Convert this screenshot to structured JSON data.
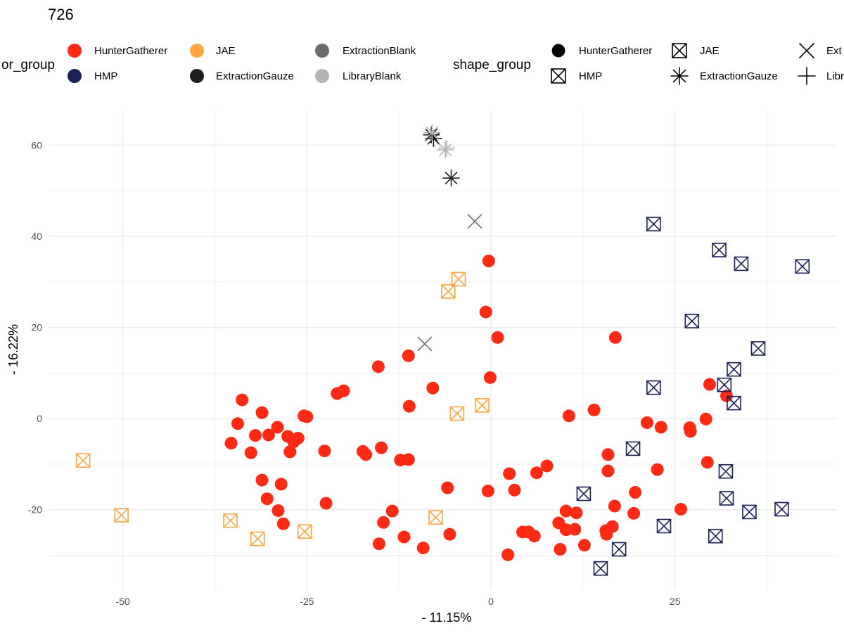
{
  "chart_data": {
    "type": "scatter",
    "title": "726",
    "xlabel": "-  11.15%",
    "ylabel": "-  16.22%",
    "xlim": [
      -60,
      47
    ],
    "ylim": [
      -37.5,
      67.5
    ],
    "x_ticks": [
      -50,
      -25,
      0,
      25
    ],
    "x_tick_labels": [
      "-50",
      "-25",
      "0",
      "25"
    ],
    "y_ticks": [
      -20,
      0,
      20,
      40,
      60
    ],
    "y_tick_labels": [
      "-20",
      "0",
      "20",
      "40",
      "60"
    ],
    "grid": true,
    "legend_position": "top",
    "colors": {
      "HunterGatherer": "#ff2a13",
      "HMP": "#1a2157",
      "JAE": "#ffa640",
      "ExtractionGauze": "#1e1e1e",
      "ExtractionBlank": "#6b6b6b",
      "LibraryBlank": "#b4b4b4"
    },
    "color_legend": {
      "title": "color_group",
      "title_visible_text": "or_group",
      "items": [
        {
          "label": "HunterGatherer",
          "color": "#ff2a13"
        },
        {
          "label": "JAE",
          "color": "#ffa640"
        },
        {
          "label": "ExtractionBlank",
          "color": "#6b6b6b"
        },
        {
          "label": "HMP",
          "color": "#1a2157"
        },
        {
          "label": "ExtractionGauze",
          "color": "#1e1e1e"
        },
        {
          "label": "LibraryBlank",
          "color": "#b4b4b4"
        }
      ]
    },
    "shape_legend": {
      "title": "shape_group",
      "items": [
        {
          "label": "HunterGatherer",
          "shape": "circle"
        },
        {
          "label": "JAE",
          "shape": "boxx"
        },
        {
          "label": "Ext",
          "shape": "x"
        },
        {
          "label": "HMP",
          "shape": "boxx"
        },
        {
          "label": "ExtractionGauze",
          "shape": "asterisk"
        },
        {
          "label": "Libr",
          "shape": "plus"
        }
      ]
    },
    "series": [
      {
        "group": "HunterGatherer",
        "shape": "circle",
        "points": [
          [
            -0.3,
            34.6
          ],
          [
            -0.7,
            23.4
          ],
          [
            0.9,
            17.8
          ],
          [
            -11.2,
            13.8
          ],
          [
            -15.3,
            11.4
          ],
          [
            -7.9,
            6.7
          ],
          [
            -0.1,
            9.0
          ],
          [
            -20.9,
            5.5
          ],
          [
            -20.0,
            6.1
          ],
          [
            -11.1,
            2.7
          ],
          [
            -33.8,
            4.1
          ],
          [
            -31.1,
            1.3
          ],
          [
            -25.4,
            0.6
          ],
          [
            -25.0,
            0.4
          ],
          [
            -34.4,
            -1.1
          ],
          [
            -29.0,
            -1.9
          ],
          [
            -32.0,
            -3.7
          ],
          [
            -30.2,
            -3.6
          ],
          [
            -26.2,
            -4.3
          ],
          [
            -27.6,
            -3.9
          ],
          [
            -26.8,
            -5.1
          ],
          [
            -35.3,
            -5.4
          ],
          [
            -32.6,
            -7.5
          ],
          [
            -27.3,
            -7.3
          ],
          [
            -22.6,
            -7.1
          ],
          [
            -17.0,
            -7.9
          ],
          [
            -17.4,
            -7.2
          ],
          [
            -14.9,
            -6.4
          ],
          [
            -12.3,
            -9.1
          ],
          [
            -11.2,
            -9.0
          ],
          [
            -31.1,
            -13.5
          ],
          [
            -28.5,
            -14.4
          ],
          [
            -30.4,
            -17.6
          ],
          [
            -28.9,
            -20.2
          ],
          [
            -28.2,
            -23.1
          ],
          [
            -22.4,
            -18.6
          ],
          [
            -13.4,
            -20.3
          ],
          [
            -14.6,
            -22.8
          ],
          [
            -11.8,
            -26.0
          ],
          [
            -15.2,
            -27.5
          ],
          [
            -9.2,
            -28.4
          ],
          [
            -5.9,
            -15.2
          ],
          [
            -5.6,
            -25.4
          ],
          [
            -0.4,
            -15.9
          ],
          [
            2.5,
            -12.1
          ],
          [
            3.2,
            -15.7
          ],
          [
            6.2,
            -11.9
          ],
          [
            7.6,
            -10.4
          ],
          [
            2.3,
            -29.9
          ],
          [
            4.3,
            -24.9
          ],
          [
            5.1,
            -24.9
          ],
          [
            5.9,
            -25.8
          ],
          [
            9.2,
            -22.9
          ],
          [
            10.2,
            -20.3
          ],
          [
            10.2,
            -24.4
          ],
          [
            11.4,
            -24.3
          ],
          [
            11.6,
            -20.7
          ],
          [
            9.4,
            -28.7
          ],
          [
            12.7,
            -27.8
          ],
          [
            10.6,
            0.6
          ],
          [
            14.0,
            1.9
          ],
          [
            16.9,
            17.8
          ],
          [
            15.9,
            -7.9
          ],
          [
            15.9,
            -11.5
          ],
          [
            15.6,
            -24.6
          ],
          [
            15.7,
            -25.4
          ],
          [
            16.5,
            -23.7
          ],
          [
            16.8,
            -19.2
          ],
          [
            19.6,
            -16.2
          ],
          [
            19.4,
            -20.8
          ],
          [
            22.6,
            -11.2
          ],
          [
            21.2,
            -0.9
          ],
          [
            23.1,
            -1.9
          ],
          [
            25.8,
            -19.9
          ],
          [
            27.0,
            -2.0
          ],
          [
            27.1,
            -2.8
          ],
          [
            29.2,
            -0.1
          ],
          [
            29.4,
            -9.6
          ],
          [
            29.7,
            7.5
          ],
          [
            32.0,
            5.0
          ]
        ]
      },
      {
        "group": "JAE",
        "shape": "boxx",
        "points": [
          [
            -4.4,
            30.6
          ],
          [
            -5.8,
            27.9
          ],
          [
            -1.2,
            2.9
          ],
          [
            -4.6,
            1.1
          ],
          [
            -55.4,
            -9.2
          ],
          [
            -50.2,
            -21.2
          ],
          [
            -35.4,
            -22.4
          ],
          [
            -31.7,
            -26.4
          ],
          [
            -25.3,
            -24.8
          ],
          [
            -7.5,
            -21.7
          ]
        ]
      },
      {
        "group": "HMP",
        "shape": "boxx",
        "points": [
          [
            22.1,
            42.7
          ],
          [
            31.0,
            37.0
          ],
          [
            34.0,
            34.0
          ],
          [
            42.3,
            33.4
          ],
          [
            27.3,
            21.4
          ],
          [
            36.3,
            15.4
          ],
          [
            33.0,
            10.8
          ],
          [
            31.7,
            7.4
          ],
          [
            22.1,
            6.8
          ],
          [
            33.0,
            3.4
          ],
          [
            19.3,
            -6.6
          ],
          [
            31.9,
            -11.6
          ],
          [
            12.6,
            -16.5
          ],
          [
            32.0,
            -17.5
          ],
          [
            35.1,
            -20.5
          ],
          [
            39.5,
            -19.9
          ],
          [
            23.5,
            -23.6
          ],
          [
            30.5,
            -25.8
          ],
          [
            17.4,
            -28.7
          ],
          [
            14.9,
            -32.9
          ]
        ]
      },
      {
        "group": "ExtractionGauze",
        "shape": "asterisk",
        "points": [
          [
            -8.1,
            62.3
          ],
          [
            -7.8,
            61.5
          ],
          [
            -5.4,
            52.8
          ]
        ]
      },
      {
        "group": "LibraryBlank",
        "shape": "asterisk",
        "points": [
          [
            -8.0,
            62.8
          ],
          [
            -6.2,
            59.0
          ]
        ]
      },
      {
        "group": "LibraryBlank",
        "shape": "plus",
        "points": [
          [
            -6.0,
            59.4
          ]
        ]
      },
      {
        "group": "ExtractionBlank",
        "shape": "x",
        "points": [
          [
            -2.2,
            43.3
          ],
          [
            -9.0,
            16.4
          ]
        ]
      }
    ]
  }
}
